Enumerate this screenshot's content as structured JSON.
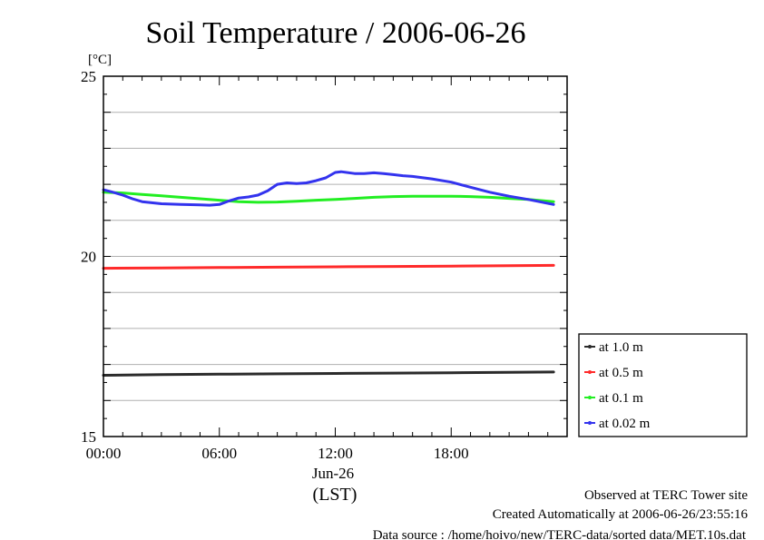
{
  "chart_data": {
    "type": "line",
    "title": "Soil Temperature / 2006-06-26",
    "ylabel": "[°C]",
    "xlabel": "(LST)",
    "date_label": "Jun-26",
    "ylim": [
      15,
      25
    ],
    "xlim": [
      0,
      24
    ],
    "y_ticks": [
      "15",
      "20",
      "25"
    ],
    "y_tick_values": [
      15,
      20,
      25
    ],
    "x_ticks": [
      "00:00",
      "06:00",
      "12:00",
      "18:00"
    ],
    "x_tick_values": [
      0,
      6,
      12,
      18
    ],
    "grid": true,
    "legend_position": "right",
    "series": [
      {
        "name": "at 1.0 m",
        "color": "#2b2b2b",
        "x": [
          0,
          3,
          6,
          9,
          12,
          15,
          18,
          21,
          23.3
        ],
        "y": [
          16.7,
          16.72,
          16.73,
          16.74,
          16.75,
          16.76,
          16.77,
          16.78,
          16.79
        ]
      },
      {
        "name": "at 0.5 m",
        "color": "#ff2a2a",
        "x": [
          0,
          3,
          6,
          9,
          12,
          15,
          18,
          21,
          23.3
        ],
        "y": [
          19.67,
          19.68,
          19.69,
          19.7,
          19.71,
          19.72,
          19.73,
          19.74,
          19.75
        ]
      },
      {
        "name": "at 0.1 m",
        "color": "#22ee22",
        "x": [
          0,
          1,
          2,
          3,
          4,
          5,
          6,
          7,
          8,
          9,
          10,
          11,
          12,
          13,
          14,
          15,
          16,
          17,
          18,
          19,
          20,
          21,
          22,
          23.3
        ],
        "y": [
          21.78,
          21.76,
          21.72,
          21.68,
          21.64,
          21.6,
          21.56,
          21.52,
          21.5,
          21.51,
          21.53,
          21.56,
          21.58,
          21.61,
          21.64,
          21.66,
          21.67,
          21.67,
          21.67,
          21.66,
          21.64,
          21.61,
          21.58,
          21.52
        ]
      },
      {
        "name": "at 0.02 m",
        "color": "#3333ee",
        "x": [
          0,
          0.5,
          1,
          1.5,
          2,
          3,
          4,
          5,
          5.5,
          6,
          6.5,
          7,
          7.5,
          8,
          8.5,
          9,
          9.5,
          10,
          10.5,
          11,
          11.5,
          12,
          12.3,
          13,
          13.5,
          14,
          14.5,
          15,
          15.5,
          16,
          17,
          18,
          19,
          20,
          21,
          22,
          23.3
        ],
        "y": [
          21.85,
          21.78,
          21.7,
          21.6,
          21.52,
          21.46,
          21.44,
          21.43,
          21.42,
          21.44,
          21.54,
          21.62,
          21.65,
          21.7,
          21.82,
          22.0,
          22.04,
          22.02,
          22.04,
          22.1,
          22.18,
          22.33,
          22.35,
          22.3,
          22.3,
          22.32,
          22.3,
          22.27,
          22.24,
          22.22,
          22.15,
          22.06,
          21.92,
          21.78,
          21.67,
          21.58,
          21.44
        ]
      }
    ]
  },
  "footer": {
    "line1": "Observed at TERC Tower site",
    "line2": "Created Automatically at 2006-06-26/23:55:16",
    "line3": "Data source : /home/hoivo/new/TERC-data/sorted  data/MET.10s.dat"
  }
}
